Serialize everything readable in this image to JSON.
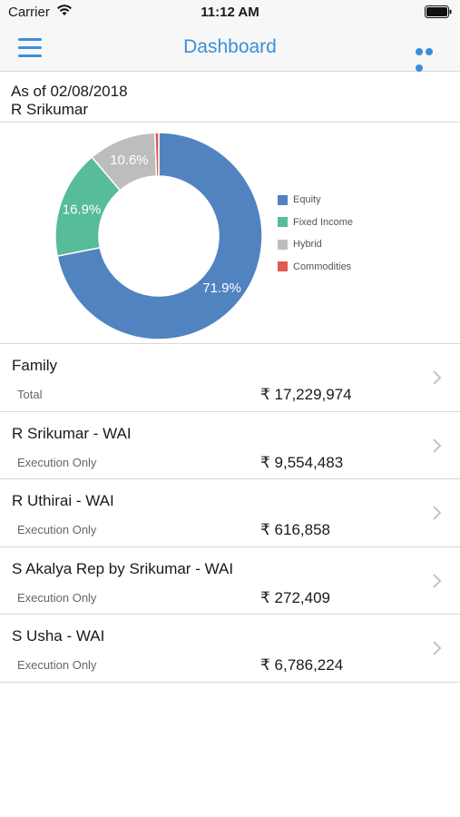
{
  "status_bar": {
    "carrier": "Carrier",
    "time": "11:12 AM"
  },
  "nav": {
    "title": "Dashboard",
    "menu_icon": "hamburger-menu-icon",
    "more_icon": "more-dots-icon"
  },
  "header": {
    "as_of": "As of 02/08/2018",
    "name": "R Srikumar"
  },
  "chart_data": {
    "type": "pie",
    "categories": [
      "Equity",
      "Fixed Income",
      "Hybrid",
      "Commodities"
    ],
    "values": [
      71.9,
      16.9,
      10.6,
      0.6
    ],
    "value_labels": [
      "71.9%",
      "16.9%",
      "10.6%",
      ""
    ],
    "colors": [
      "#5183c1",
      "#57bc98",
      "#bdbdbd",
      "#e05a52"
    ],
    "legend_position": "right"
  },
  "accounts": [
    {
      "name": "Family",
      "type": "Total",
      "amount": "₹ 17,229,974"
    },
    {
      "name": "R Srikumar - WAI",
      "type": "Execution Only",
      "amount": "₹ 9,554,483"
    },
    {
      "name": "R Uthirai - WAI",
      "type": "Execution Only",
      "amount": "₹ 616,858"
    },
    {
      "name": "S Akalya Rep by Srikumar - WAI",
      "type": "Execution Only",
      "amount": "₹ 272,409"
    },
    {
      "name": "S Usha - WAI",
      "type": "Execution Only",
      "amount": "₹ 6,786,224"
    }
  ]
}
